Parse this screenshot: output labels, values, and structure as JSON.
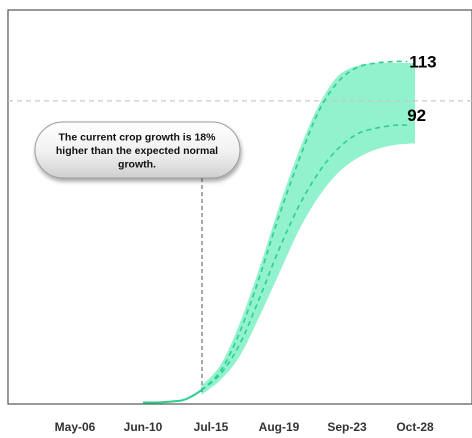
{
  "chart_data": {
    "type": "area",
    "x_ticks": [
      "May-06",
      "Jun-10",
      "Jul-15",
      "Aug-19",
      "Sep-23",
      "Oct-28"
    ],
    "y_range": [
      0,
      130
    ],
    "grid": false,
    "reference_value": 100,
    "callout_date": "Jul-15",
    "annotation": "The current crop growth is 18% higher than the expected normal growth.",
    "end_labels": [
      "113",
      "92"
    ],
    "series": [
      {
        "style": "solid",
        "x": [
          "2023-06-10",
          "2023-06-20",
          "2023-06-30",
          "2023-07-05",
          "2023-07-10"
        ],
        "y": [
          0.5,
          0.6,
          1.2,
          2.5,
          4.5
        ]
      },
      {
        "style": "dashed",
        "x": [
          "2023-07-10",
          "2023-07-20",
          "2023-07-30",
          "2023-08-09",
          "2023-08-19",
          "2023-08-29",
          "2023-09-08",
          "2023-09-18",
          "2023-09-28",
          "2023-10-08",
          "2023-10-18",
          "2023-10-24"
        ],
        "y": [
          4.5,
          11,
          24,
          42,
          62,
          80,
          96,
          106,
          111,
          112.5,
          113,
          113
        ]
      },
      {
        "style": "dashed",
        "x": [
          "2023-07-10",
          "2023-07-20",
          "2023-07-30",
          "2023-08-09",
          "2023-08-19",
          "2023-08-29",
          "2023-09-08",
          "2023-09-18",
          "2023-09-28",
          "2023-10-08",
          "2023-10-18",
          "2023-10-24"
        ],
        "y": [
          4.5,
          10,
          20,
          35,
          51,
          65,
          76,
          84,
          89,
          91,
          92,
          92
        ]
      }
    ],
    "band": {
      "x": [
        "2023-07-10",
        "2023-07-20",
        "2023-07-30",
        "2023-08-09",
        "2023-08-19",
        "2023-08-29",
        "2023-09-08",
        "2023-09-18",
        "2023-09-28",
        "2023-10-08",
        "2023-10-18",
        "2023-10-28"
      ],
      "lower": [
        3,
        8,
        16,
        29,
        43,
        57,
        68,
        76,
        81,
        84,
        85.5,
        86
      ],
      "upper": [
        6,
        13,
        27,
        45,
        65,
        83,
        98,
        108,
        111.5,
        112.5,
        112.5,
        112.5
      ]
    },
    "colors": {
      "band": "#7ef0c4",
      "line": "#2fcf8f",
      "reference": "#c8c8c8",
      "callout_line": "#555555"
    }
  }
}
